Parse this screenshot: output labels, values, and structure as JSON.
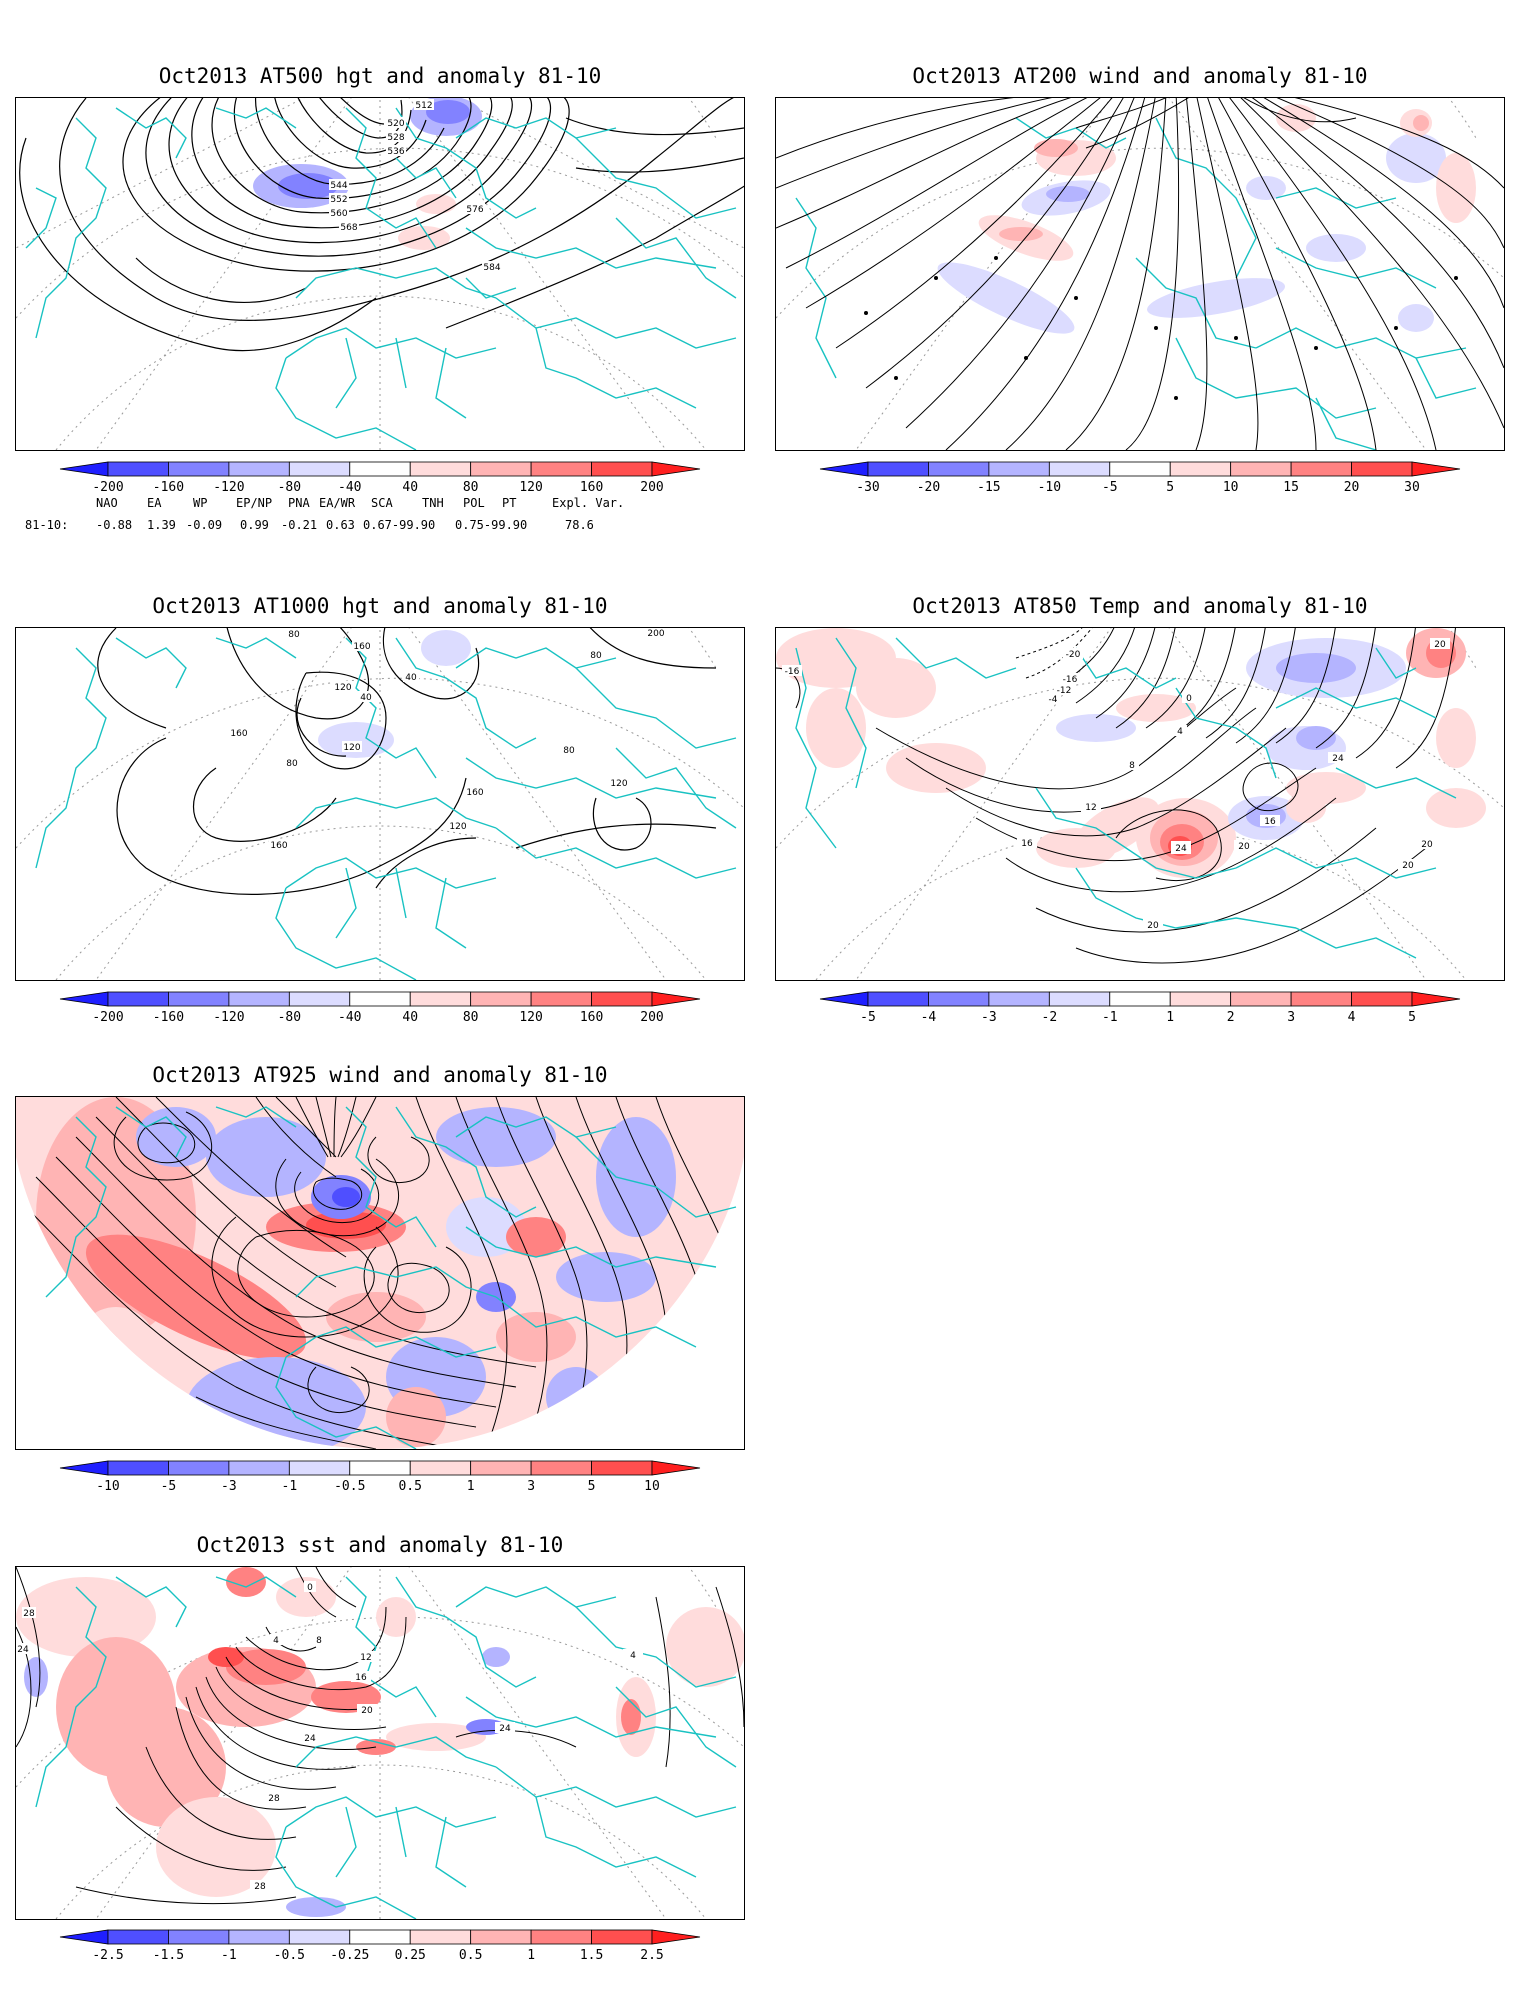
{
  "panels": [
    {
      "id": "p1",
      "title": "Oct2013 AT500 hgt and anomaly 81-10",
      "contour_labels": [
        "512",
        "520",
        "528",
        "536",
        "544",
        "552",
        "560",
        "568",
        "576",
        "584"
      ],
      "colorbar": {
        "labels": [
          "-200",
          "-160",
          "-120",
          "-80",
          "-40",
          "40",
          "80",
          "120",
          "160",
          "200"
        ]
      }
    },
    {
      "id": "p2",
      "title": "Oct2013 AT200 wind and anomaly 81-10",
      "contour_labels": [],
      "colorbar": {
        "labels": [
          "-30",
          "-20",
          "-15",
          "-10",
          "-5",
          "5",
          "10",
          "15",
          "20",
          "30"
        ]
      }
    },
    {
      "id": "p3",
      "title": "Oct2013 AT1000 hgt and anomaly 81-10",
      "contour_labels": [
        "80",
        "160",
        "200",
        "120",
        "40",
        "40",
        "80",
        "120",
        "160",
        "80",
        "160",
        "120",
        "160",
        "120",
        "80"
      ],
      "colorbar": {
        "labels": [
          "-200",
          "-160",
          "-120",
          "-80",
          "-40",
          "40",
          "80",
          "120",
          "160",
          "200"
        ]
      }
    },
    {
      "id": "p4",
      "title": "Oct2013 AT850 Temp and anomaly 81-10",
      "contour_labels": [
        "-16",
        "-20",
        "-16",
        "-12",
        "-4",
        "0",
        "4",
        "8",
        "12",
        "16",
        "24",
        "16",
        "20",
        "24",
        "20",
        "20",
        "20",
        "20"
      ],
      "colorbar": {
        "labels": [
          "-5",
          "-4",
          "-3",
          "-2",
          "-1",
          "1",
          "2",
          "3",
          "4",
          "5"
        ]
      }
    },
    {
      "id": "p5",
      "title": "Oct2013 AT925 wind and anomaly 81-10",
      "contour_labels": [],
      "colorbar": {
        "labels": [
          "-10",
          "-5",
          "-3",
          "-1",
          "-0.5",
          "0.5",
          "1",
          "3",
          "5",
          "10"
        ]
      }
    },
    {
      "id": "p6",
      "title": "Oct2013 sst and anomaly 81-10",
      "contour_labels": [
        "28",
        "24",
        "0",
        "4",
        "8",
        "12",
        "16",
        "20",
        "24",
        "24",
        "28",
        "28",
        "4"
      ],
      "colorbar": {
        "labels": [
          "-2.5",
          "-1.5",
          "-1",
          "-0.5",
          "-0.25",
          "0.25",
          "0.5",
          "1",
          "1.5",
          "2.5"
        ]
      }
    }
  ],
  "teleconnection": {
    "headers": [
      "NAO",
      "EA",
      "WP",
      "EP/NP",
      "PNA",
      "EA/WR",
      "SCA",
      "TNH",
      "POL",
      "PT",
      "Expl. Var."
    ],
    "row_label": "81-10:",
    "values": [
      "-0.88",
      "1.39",
      "-0.09",
      "0.99",
      "-0.21",
      "0.63",
      "0.67-99.90",
      "0.75-99.90",
      "78.6"
    ]
  },
  "colors": {
    "coast": "#19c2c2",
    "negative": [
      "#1f1fff",
      "#4f4fff",
      "#8282ff",
      "#b4b4ff",
      "#dcdcff"
    ],
    "positive": [
      "#ffdcdc",
      "#ffb4b4",
      "#ff8282",
      "#ff4f4f",
      "#ff1f1f"
    ],
    "contour": "#000000",
    "grid": "#9a9a9a"
  }
}
